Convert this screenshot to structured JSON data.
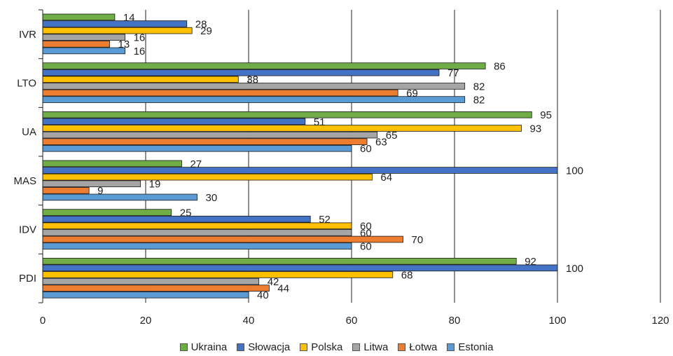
{
  "chart_data": {
    "type": "bar",
    "orientation": "horizontal",
    "title": "",
    "xlabel": "",
    "ylabel": "",
    "xlim": [
      0,
      120
    ],
    "x_ticks": [
      "0",
      "20",
      "40",
      "60",
      "80",
      "100",
      "120"
    ],
    "grid": true,
    "legend_position": "bottom",
    "categories": [
      "IVR",
      "LTO",
      "UA",
      "MAS",
      "IDV",
      "PDI"
    ],
    "series": [
      {
        "name": "Ukraina",
        "color": "#70ad47",
        "values": [
          14,
          86,
          95,
          27,
          25,
          92
        ]
      },
      {
        "name": "Słowacja",
        "color": "#4472c4",
        "values": [
          28,
          77,
          51,
          100,
          52,
          100
        ]
      },
      {
        "name": "Polska",
        "color": "#ffc000",
        "values": [
          29,
          38,
          93,
          64,
          60,
          68
        ]
      },
      {
        "name": "Litwa",
        "color": "#a5a5a5",
        "values": [
          16,
          82,
          65,
          19,
          60,
          42
        ]
      },
      {
        "name": "Łotwa",
        "color": "#ed7d31",
        "values": [
          13,
          69,
          63,
          9,
          70,
          44
        ]
      },
      {
        "name": "Estonia",
        "color": "#5b9bd5",
        "values": [
          16,
          82,
          60,
          30,
          60,
          40
        ]
      }
    ]
  }
}
